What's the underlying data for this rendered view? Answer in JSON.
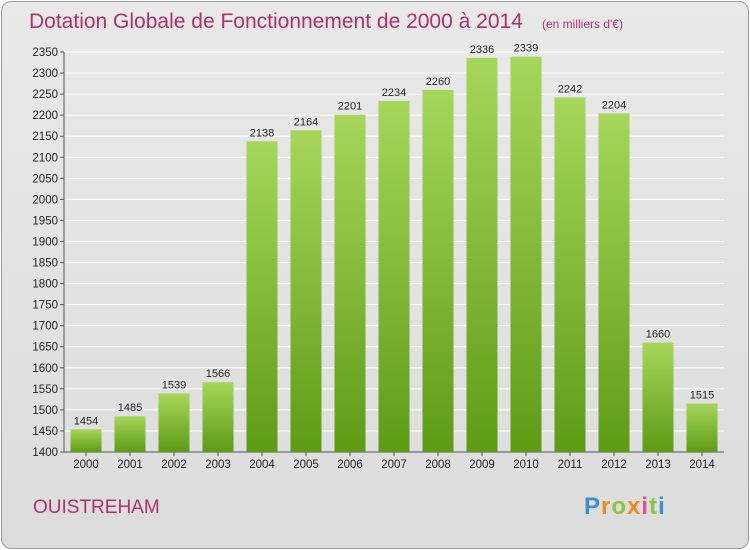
{
  "title": "Dotation Globale de Fonctionnement de 2000 à 2014",
  "subtitle": "(en milliers d'€)",
  "city": "OUISTREHAM",
  "logo_text": "Proxiti",
  "colors": {
    "title": "#b0306a",
    "bar_top": "#a6d65a",
    "bar_bottom": "#5e9c14",
    "grid": "#ffffff",
    "background": "#e3e3e3"
  },
  "chart_data": {
    "type": "bar",
    "categories": [
      "2000",
      "2001",
      "2002",
      "2003",
      "2004",
      "2005",
      "2006",
      "2007",
      "2008",
      "2009",
      "2010",
      "2011",
      "2012",
      "2013",
      "2014"
    ],
    "values": [
      1454,
      1485,
      1539,
      1566,
      2138,
      2164,
      2201,
      2234,
      2260,
      2336,
      2339,
      2242,
      2204,
      1660,
      1515
    ],
    "ylim": [
      1400,
      2350
    ],
    "yticks": [
      1400,
      1450,
      1500,
      1550,
      1600,
      1650,
      1700,
      1750,
      1800,
      1850,
      1900,
      1950,
      2000,
      2050,
      2100,
      2150,
      2200,
      2250,
      2300,
      2350
    ],
    "grid": true
  }
}
